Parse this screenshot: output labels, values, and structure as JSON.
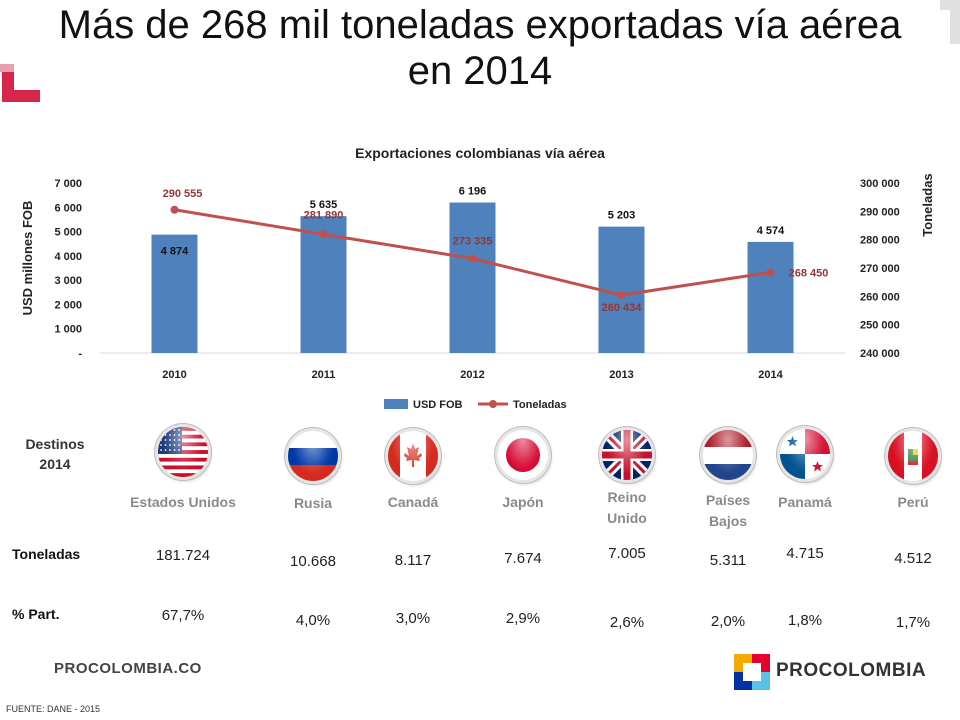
{
  "page": {
    "title_line1": "Más de 268 mil toneladas exportadas vía aérea",
    "title_line2": "en 2014",
    "destinations_label": "Destinos 2014",
    "row_tons_label": "Toneladas",
    "row_share_label": "% Part.",
    "footer_site": "PROCOLOMBIA.CO",
    "footer_brand": "PROCOLOMBIA",
    "source": "FUENTE: DANE - 2015",
    "accent_red": "#d6264a",
    "brand_colors": [
      "#f2a900",
      "#e4002b",
      "#0033a0",
      "#5bc2e7"
    ]
  },
  "destinations": [
    {
      "country": "Estados Unidos",
      "flag": "usa-flag-icon",
      "tons": "181.724",
      "share": "67,7%"
    },
    {
      "country": "Rusia",
      "flag": "russia-flag-icon",
      "tons": "10.668",
      "share": "4,0%"
    },
    {
      "country": "Canadá",
      "flag": "canada-flag-icon",
      "tons": "8.117",
      "share": "3,0%"
    },
    {
      "country": "Japón",
      "flag": "japan-flag-icon",
      "tons": "7.674",
      "share": "2,9%"
    },
    {
      "country": "Reino Unido",
      "flag": "uk-flag-icon",
      "tons": "7.005",
      "share": "2,6%"
    },
    {
      "country": "Países Bajos",
      "flag": "netherlands-flag-icon",
      "tons": "5.311",
      "share": "2,0%"
    },
    {
      "country": "Panamá",
      "flag": "panama-flag-icon",
      "tons": "4.715",
      "share": "1,8%"
    },
    {
      "country": "Perú",
      "flag": "peru-flag-icon",
      "tons": "4.512",
      "share": "1,7%"
    }
  ],
  "chart_data": {
    "type": "bar",
    "title": "Exportaciones colombianas vía aérea",
    "categories": [
      "2010",
      "2011",
      "2012",
      "2013",
      "2014"
    ],
    "ylabel": "USD millones FOB",
    "y2label": "Toneladas",
    "ylim": [
      0,
      7000
    ],
    "y2lim": [
      240000,
      300000
    ],
    "yticks": [
      "-",
      "1 000",
      "2 000",
      "3 000",
      "4 000",
      "5 000",
      "6 000",
      "7 000"
    ],
    "y2ticks": [
      "240 000",
      "250 000",
      "260 000",
      "270 000",
      "280 000",
      "290 000",
      "300 000"
    ],
    "series": [
      {
        "name": "USD FOB",
        "type": "bar",
        "axis": "left",
        "color": "#4f81bd",
        "values": [
          4874,
          5635,
          6196,
          5203,
          4574
        ],
        "labels": [
          "4 874",
          "5 635",
          "6 196",
          "5 203",
          "4 574"
        ]
      },
      {
        "name": "Toneladas",
        "type": "line",
        "axis": "right",
        "color": "#c0504d",
        "values": [
          290555,
          281890,
          273335,
          260434,
          268450
        ],
        "labels": [
          "290 555",
          "281 890",
          "273 335",
          "260 434",
          "268 450"
        ]
      }
    ],
    "legend": "bottom"
  }
}
